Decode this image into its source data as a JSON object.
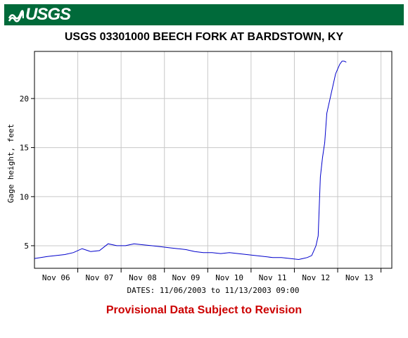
{
  "header": {
    "agency": "USGS",
    "brand_color": "#006a3a"
  },
  "chart_data": {
    "type": "line",
    "title": "USGS 03301000 BEECH FORK AT BARDSTOWN, KY",
    "ylabel": "Gage height, feet",
    "xlabel": "DATES: 11/06/2003 to 11/13/2003 09:00",
    "x_tick_labels": [
      "Nov 06",
      "Nov 07",
      "Nov 08",
      "Nov 09",
      "Nov 10",
      "Nov 11",
      "Nov 12",
      "Nov 13"
    ],
    "y_ticks": [
      5,
      10,
      15,
      20
    ],
    "ylim": [
      2.7,
      24.8
    ],
    "grid": true,
    "line_color": "#0000cc",
    "series": [
      {
        "x": [
          5.5,
          5.8,
          6.0,
          6.2,
          6.4,
          6.6,
          6.8,
          7.0,
          7.2,
          7.4,
          7.5,
          7.6,
          7.8,
          8.0,
          8.2,
          8.4,
          8.6,
          8.8,
          9.0,
          9.2,
          9.4,
          9.6,
          9.8,
          10.0,
          10.2,
          10.4,
          10.6,
          10.8,
          11.0,
          11.2,
          11.4,
          11.6,
          11.7,
          11.8,
          11.9,
          11.95,
          12.0,
          12.05,
          12.1,
          12.15,
          12.2,
          12.25,
          12.3,
          12.35,
          12.4,
          12.45,
          12.5,
          12.55,
          12.6,
          12.65,
          12.7
        ],
        "y": [
          3.7,
          3.9,
          4.0,
          4.1,
          4.3,
          4.7,
          4.4,
          4.5,
          5.2,
          5.0,
          5.0,
          5.0,
          5.2,
          5.1,
          5.0,
          4.9,
          4.8,
          4.7,
          4.6,
          4.4,
          4.3,
          4.3,
          4.2,
          4.3,
          4.2,
          4.1,
          4.0,
          3.9,
          3.8,
          3.8,
          3.7,
          3.6,
          3.7,
          3.8,
          4.0,
          4.5,
          5.0,
          6.0,
          12.0,
          14.0,
          15.5,
          18.5,
          19.5,
          20.5,
          21.5,
          22.5,
          23.0,
          23.5,
          23.8,
          23.8,
          23.7
        ]
      }
    ]
  },
  "footer": {
    "notice": "Provisional Data Subject to Revision",
    "notice_color": "#cc0000"
  }
}
